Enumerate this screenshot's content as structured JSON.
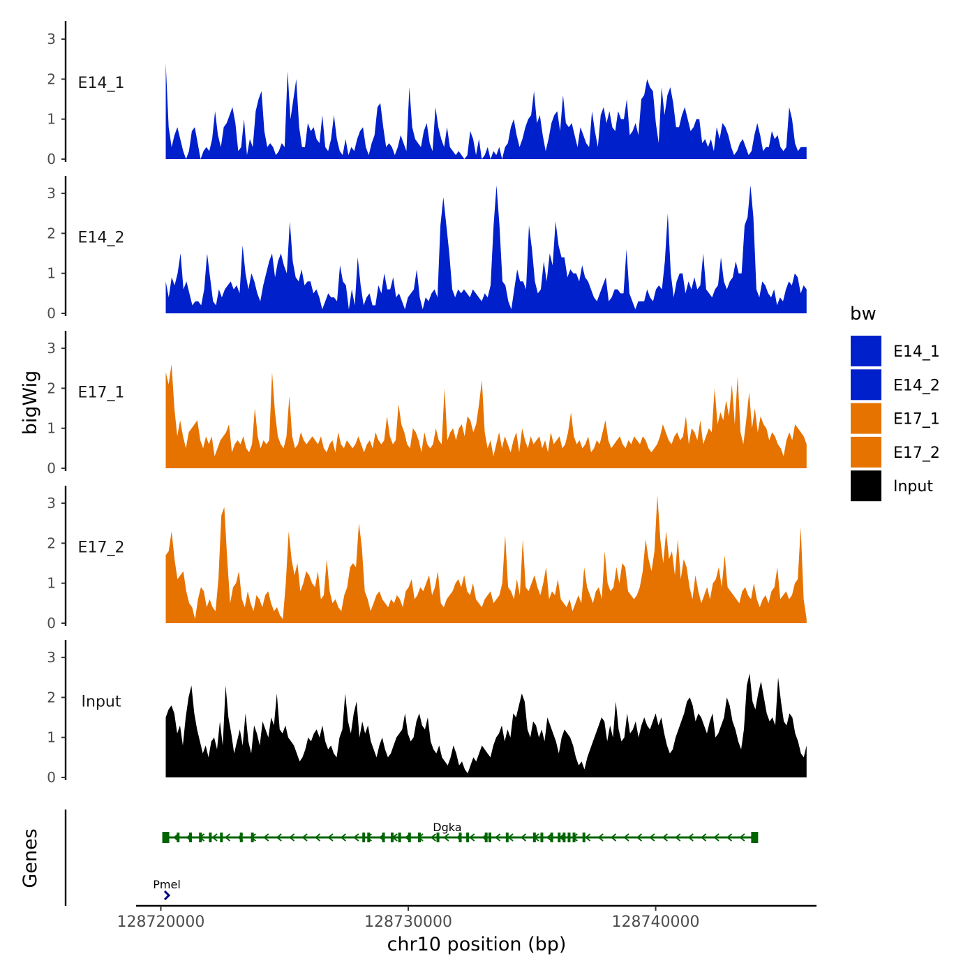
{
  "chart_data": {
    "type": "area",
    "xlabel": "chr10 position (bp)",
    "ylabel": "bigWig",
    "genes_label": "Genes",
    "xlim": [
      128719000,
      128746500
    ],
    "x_range": [
      128720200,
      128746100
    ],
    "x_ticks": [
      128720000,
      128730000,
      128740000
    ],
    "x_tick_labels": [
      "128720000",
      "128730000",
      "128740000"
    ],
    "ylim": [
      0,
      3.4
    ],
    "y_ticks": [
      0,
      1,
      2,
      3
    ],
    "y_tick_labels": [
      "0",
      "1",
      "2",
      "3"
    ],
    "legend": {
      "title": "bw",
      "entries": [
        {
          "label": "E14_1",
          "color": "#0020CC"
        },
        {
          "label": "E14_2",
          "color": "#0020CC"
        },
        {
          "label": "E17_1",
          "color": "#E67300"
        },
        {
          "label": "E17_2",
          "color": "#E67300"
        },
        {
          "label": "Input",
          "color": "#000000"
        }
      ]
    },
    "series": [
      {
        "name": "E14_1",
        "color": "#0020CC",
        "values": [
          2.4,
          0.8,
          0.3,
          0.6,
          0.8,
          0.5,
          0.2,
          0,
          0.2,
          0.7,
          0.8,
          0.4,
          0,
          0.2,
          0.3,
          0.2,
          0.5,
          1.2,
          0.6,
          0.3,
          0.8,
          0.9,
          1.1,
          1.3,
          0.9,
          0.2,
          0.3,
          1.0,
          0.1,
          0.5,
          0.3,
          1.2,
          1.5,
          1.7,
          0.7,
          0.3,
          0.4,
          0.3,
          0.1,
          0.2,
          0.4,
          0.3,
          2.2,
          1.0,
          1.5,
          2.0,
          0.8,
          0.3,
          0.3,
          0.9,
          0.7,
          0.8,
          0.5,
          0.4,
          1.1,
          0.3,
          0.2,
          0.5,
          1.1,
          0.5,
          0.2,
          0.1,
          0.5,
          0.1,
          0.3,
          0.2,
          0.5,
          0.7,
          0.8,
          0.3,
          0.1,
          0.4,
          0.6,
          1.3,
          1.4,
          0.8,
          0.3,
          0.4,
          0.3,
          0.1,
          0.3,
          0.6,
          0.4,
          0.2,
          1.8,
          0.8,
          0.5,
          0.4,
          0.3,
          0.7,
          0.9,
          0.4,
          0.2,
          1.3,
          0.8,
          0.5,
          0.3,
          0.8,
          0.3,
          0.2,
          0.1,
          0.2,
          0.1,
          0,
          0.1,
          0.7,
          0.5,
          0.1,
          0.5,
          0,
          0.1,
          0.3,
          0,
          0.2,
          0.1,
          0.3,
          0,
          0.3,
          0.4,
          0.8,
          1.0,
          0.6,
          0.3,
          0.5,
          0.8,
          1.0,
          1.1,
          1.7,
          0.9,
          1.1,
          0.6,
          0.2,
          0.5,
          0.9,
          1.1,
          1.2,
          0.7,
          1.6,
          0.9,
          0.8,
          0.9,
          0.6,
          0.3,
          0.8,
          0.6,
          0.4,
          0.3,
          1.2,
          0.7,
          0.3,
          1.1,
          1.3,
          0.9,
          1.2,
          0.8,
          0.7,
          1.2,
          1.0,
          1.0,
          1.5,
          0.6,
          0.7,
          0.9,
          0.6,
          1.5,
          1.6,
          2.0,
          1.8,
          1.7,
          0.9,
          0.4,
          1.8,
          1.1,
          1.6,
          1.8,
          1.4,
          0.8,
          0.8,
          1.1,
          1.3,
          1.0,
          0.7,
          0.8,
          1.0,
          1.0,
          0.4,
          0.5,
          0.3,
          0.5,
          0.2,
          0.8,
          0.5,
          0.9,
          0.8,
          0.6,
          0.3,
          0.1,
          0.2,
          0.4,
          0.5,
          0.3,
          0.1,
          0.2,
          0.6,
          0.9,
          0.6,
          0.2,
          0.3,
          0.3,
          0.7,
          0.5,
          0.6,
          0.3,
          0.2,
          0.3,
          1.3,
          1.0,
          0.4,
          0.2,
          0.3,
          0.3,
          0.3
        ]
      },
      {
        "name": "E14_2",
        "color": "#0020CC",
        "values": [
          0.8,
          0.4,
          0.9,
          0.7,
          1.0,
          1.5,
          0.6,
          0.8,
          0.5,
          0.2,
          0.3,
          0.3,
          0.2,
          0.6,
          1.5,
          0.9,
          0.3,
          0.2,
          0.6,
          0.4,
          0.6,
          0.7,
          0.8,
          0.6,
          0.7,
          0.5,
          1.7,
          1.0,
          0.6,
          1.0,
          0.8,
          0.5,
          0.3,
          0.7,
          1.0,
          1.3,
          1.5,
          0.9,
          1.3,
          1.5,
          1.2,
          1.0,
          2.3,
          1.3,
          0.9,
          0.8,
          1.1,
          0.7,
          0.8,
          0.8,
          0.5,
          0.6,
          0.4,
          0.1,
          0.3,
          0.5,
          0.4,
          0.4,
          0.3,
          1.2,
          0.8,
          0.7,
          0.1,
          0.6,
          0.2,
          1.4,
          0.7,
          0.2,
          0.4,
          0.5,
          0.2,
          0.2,
          0.7,
          0.5,
          1.0,
          0.6,
          0.6,
          0.9,
          0.4,
          0.5,
          0.3,
          0.1,
          0.4,
          0.5,
          0.6,
          1.1,
          0.4,
          0.1,
          0.4,
          0.3,
          0.5,
          0.6,
          0.4,
          2.2,
          2.9,
          2.2,
          1.5,
          0.6,
          0.4,
          0.6,
          0.5,
          0.6,
          0.5,
          0.4,
          0.6,
          0.5,
          0.4,
          0.3,
          0.5,
          0.4,
          0.7,
          2.2,
          3.2,
          2.2,
          0.8,
          0.7,
          0.3,
          0.1,
          0.6,
          1.1,
          0.8,
          0.8,
          0.6,
          2.2,
          1.6,
          0.8,
          0.5,
          0.6,
          1.3,
          0.8,
          1.5,
          1.2,
          2.3,
          1.7,
          1.4,
          1.4,
          0.9,
          1.1,
          1.0,
          1.0,
          0.8,
          1.2,
          0.9,
          0.8,
          0.6,
          0.4,
          0.3,
          0.5,
          0.7,
          0.9,
          0.3,
          0.4,
          0.6,
          0.6,
          0.5,
          0.5,
          1.6,
          0.5,
          0.3,
          0.1,
          0.3,
          0.3,
          0.3,
          0.6,
          0.4,
          0.3,
          0.6,
          0.7,
          0.6,
          1.3,
          2.5,
          1.0,
          0.4,
          0.8,
          1.0,
          1.0,
          0.5,
          0.8,
          0.6,
          0.9,
          0.6,
          0.7,
          1.5,
          0.6,
          0.5,
          0.4,
          0.6,
          0.7,
          1.4,
          0.8,
          0.6,
          0.8,
          0.9,
          1.3,
          1.0,
          1.0,
          2.2,
          2.4,
          3.2,
          2.4,
          0.6,
          0.4,
          0.8,
          0.7,
          0.5,
          0.4,
          0.6,
          0.2,
          0.4,
          0.3,
          0.6,
          0.8,
          0.7,
          1.0,
          0.9,
          0.5,
          0.7,
          0.6
        ]
      },
      {
        "name": "E17_1",
        "color": "#E67300",
        "values": [
          2.4,
          2.1,
          2.6,
          1.5,
          0.8,
          1.2,
          0.8,
          0.5,
          0.9,
          1.0,
          1.1,
          1.2,
          0.7,
          0.5,
          0.8,
          0.6,
          0.8,
          0.3,
          0.5,
          0.7,
          0.8,
          0.9,
          1.1,
          0.4,
          0.6,
          0.7,
          0.6,
          0.8,
          0.5,
          0.4,
          0.6,
          1.5,
          0.8,
          0.5,
          0.7,
          0.6,
          0.7,
          2.4,
          1.4,
          0.8,
          0.6,
          0.5,
          0.8,
          1.8,
          0.8,
          0.5,
          0.6,
          0.9,
          0.7,
          0.6,
          0.7,
          0.8,
          0.7,
          0.6,
          0.8,
          0.5,
          0.4,
          0.6,
          0.7,
          0.4,
          0.9,
          0.6,
          0.5,
          0.7,
          0.6,
          0.5,
          0.6,
          0.8,
          0.6,
          0.4,
          0.6,
          0.7,
          0.5,
          0.9,
          0.7,
          0.6,
          0.7,
          1.3,
          0.8,
          0.6,
          0.7,
          1.6,
          1.1,
          0.9,
          0.6,
          0.5,
          1.0,
          0.9,
          0.7,
          0.4,
          0.9,
          0.6,
          0.5,
          0.6,
          1.0,
          0.7,
          0.6,
          2.0,
          0.7,
          0.9,
          1.0,
          0.7,
          1.0,
          1.1,
          0.8,
          1.3,
          1.2,
          0.9,
          1.1,
          1.6,
          2.2,
          0.9,
          0.5,
          0.7,
          0.3,
          0.6,
          0.9,
          0.5,
          0.8,
          0.6,
          0.4,
          0.7,
          0.9,
          0.4,
          1.0,
          0.7,
          0.5,
          0.8,
          0.6,
          0.7,
          0.8,
          0.5,
          0.7,
          0.4,
          0.9,
          0.6,
          0.7,
          0.8,
          0.5,
          0.6,
          0.9,
          1.4,
          0.8,
          0.6,
          0.7,
          0.5,
          0.6,
          0.8,
          0.4,
          0.5,
          0.7,
          0.6,
          0.9,
          1.2,
          0.7,
          0.5,
          0.6,
          0.7,
          0.8,
          0.6,
          0.5,
          0.7,
          0.6,
          0.8,
          0.7,
          0.6,
          0.8,
          0.7,
          0.5,
          0.4,
          0.5,
          0.6,
          0.8,
          1.1,
          0.9,
          0.7,
          0.6,
          0.8,
          0.9,
          0.7,
          0.8,
          1.3,
          0.6,
          1.0,
          0.9,
          0.7,
          1.2,
          0.6,
          0.8,
          1.0,
          0.9,
          2.0,
          1.1,
          1.4,
          1.2,
          1.7,
          1.3,
          2.1,
          1.1,
          2.3,
          0.9,
          0.6,
          1.2,
          1.9,
          1.0,
          1.5,
          0.9,
          1.3,
          1.1,
          1.0,
          0.7,
          0.9,
          0.8,
          0.6,
          0.5,
          0.3,
          0.7,
          0.9,
          0.7,
          1.1,
          1.0,
          0.9,
          0.8,
          0.6
        ]
      },
      {
        "name": "E17_2",
        "color": "#E67300",
        "values": [
          1.7,
          1.8,
          2.3,
          1.6,
          1.1,
          1.2,
          1.3,
          0.8,
          0.5,
          0.4,
          0.1,
          0.6,
          0.9,
          0.8,
          0.4,
          0.6,
          0.4,
          0.3,
          1.1,
          2.7,
          2.9,
          1.6,
          0.5,
          0.9,
          1.0,
          1.3,
          0.6,
          0.4,
          0.8,
          0.5,
          0.3,
          0.7,
          0.6,
          0.4,
          0.7,
          0.8,
          0.5,
          0.3,
          0.4,
          0.2,
          0.1,
          1.0,
          2.3,
          1.6,
          1.2,
          1.5,
          0.8,
          1.0,
          1.3,
          1.2,
          1.0,
          0.9,
          1.3,
          0.6,
          0.7,
          1.6,
          0.8,
          0.5,
          0.6,
          0.4,
          0.3,
          0.7,
          0.9,
          1.4,
          1.5,
          1.4,
          2.5,
          1.9,
          0.8,
          0.6,
          0.3,
          0.5,
          0.7,
          0.8,
          0.6,
          0.5,
          0.4,
          0.6,
          0.5,
          0.7,
          0.6,
          0.4,
          0.8,
          0.9,
          1.1,
          0.6,
          0.7,
          0.9,
          0.8,
          1.0,
          1.2,
          0.7,
          0.9,
          1.3,
          0.5,
          0.4,
          0.6,
          0.7,
          0.8,
          1.0,
          1.1,
          0.9,
          1.2,
          0.8,
          0.7,
          1.0,
          0.6,
          0.5,
          0.4,
          0.6,
          0.7,
          0.8,
          0.5,
          0.6,
          0.7,
          1.0,
          2.2,
          0.9,
          0.8,
          0.6,
          1.1,
          0.7,
          2.1,
          0.9,
          0.8,
          1.0,
          1.2,
          0.9,
          0.7,
          1.0,
          1.4,
          0.6,
          0.8,
          0.7,
          1.1,
          0.6,
          0.5,
          0.4,
          0.6,
          0.3,
          0.5,
          0.7,
          0.5,
          1.4,
          0.9,
          0.7,
          0.5,
          0.8,
          0.9,
          0.6,
          1.8,
          1.0,
          0.8,
          0.9,
          1.4,
          1.0,
          1.5,
          1.4,
          0.8,
          0.7,
          0.6,
          0.7,
          0.9,
          1.3,
          2.1,
          1.6,
          1.3,
          1.8,
          3.2,
          2.1,
          1.5,
          2.3,
          1.6,
          1.8,
          1.2,
          2.1,
          1.1,
          1.6,
          1.4,
          0.9,
          0.6,
          1.2,
          0.8,
          0.5,
          0.7,
          0.9,
          0.6,
          1.0,
          1.1,
          1.4,
          0.9,
          1.7,
          0.9,
          0.8,
          0.7,
          0.6,
          0.5,
          0.8,
          0.9,
          0.7,
          0.6,
          1.0,
          0.6,
          0.4,
          0.6,
          0.7,
          0.5,
          0.8,
          0.9,
          1.4,
          0.6,
          0.7,
          0.8,
          0.6,
          0.7,
          1.0,
          1.1,
          2.4,
          0.6,
          0.1
        ]
      },
      {
        "name": "Input",
        "color": "#000000",
        "values": [
          1.5,
          1.7,
          1.8,
          1.6,
          1.1,
          1.3,
          0.8,
          1.5,
          2.0,
          2.3,
          1.6,
          1.2,
          0.9,
          0.6,
          0.8,
          0.5,
          0.9,
          1.0,
          0.7,
          1.4,
          0.8,
          2.3,
          1.5,
          1.1,
          0.6,
          0.9,
          1.2,
          0.8,
          1.6,
          0.9,
          0.6,
          1.3,
          1.1,
          0.8,
          1.4,
          1.2,
          1.0,
          1.5,
          1.3,
          2.1,
          1.2,
          1.1,
          1.3,
          1.0,
          0.9,
          0.8,
          0.6,
          0.4,
          0.5,
          0.7,
          1.0,
          0.9,
          1.1,
          1.2,
          1.0,
          1.3,
          0.9,
          0.7,
          0.8,
          0.6,
          0.5,
          1.0,
          1.2,
          2.1,
          1.4,
          1.1,
          1.6,
          1.9,
          1.0,
          1.4,
          1.1,
          1.3,
          0.9,
          0.7,
          0.5,
          0.8,
          1.0,
          0.7,
          0.5,
          0.6,
          0.8,
          1.0,
          1.1,
          1.2,
          1.6,
          1.1,
          0.9,
          1.0,
          1.4,
          1.6,
          1.3,
          1.2,
          1.5,
          0.9,
          0.7,
          0.6,
          0.8,
          0.5,
          0.4,
          0.3,
          0.5,
          0.8,
          0.6,
          0.3,
          0.4,
          0.2,
          0.1,
          0.3,
          0.5,
          0.4,
          0.6,
          0.8,
          0.7,
          0.6,
          0.5,
          0.8,
          1.0,
          1.1,
          1.3,
          0.9,
          1.2,
          1.0,
          1.6,
          1.5,
          1.8,
          2.1,
          1.9,
          1.2,
          1.0,
          1.4,
          1.3,
          1.0,
          1.2,
          0.9,
          1.5,
          1.3,
          1.1,
          0.9,
          0.6,
          1.0,
          1.2,
          1.1,
          1.0,
          0.8,
          0.5,
          0.3,
          0.4,
          0.2,
          0.5,
          0.7,
          0.9,
          1.1,
          1.3,
          1.5,
          1.4,
          0.9,
          1.3,
          1.0,
          1.9,
          1.2,
          0.9,
          1.0,
          1.6,
          1.1,
          1.2,
          1.4,
          1.0,
          1.3,
          1.5,
          1.3,
          1.2,
          1.4,
          1.6,
          1.3,
          1.5,
          1.1,
          0.8,
          0.6,
          0.7,
          1.0,
          1.2,
          1.4,
          1.6,
          1.9,
          2.0,
          1.8,
          1.4,
          1.6,
          1.5,
          1.3,
          1.1,
          1.4,
          1.6,
          1.0,
          1.1,
          1.3,
          1.5,
          2.0,
          1.8,
          1.4,
          1.2,
          0.9,
          0.7,
          1.2,
          2.3,
          2.6,
          1.9,
          1.7,
          2.1,
          2.4,
          2.0,
          1.6,
          1.4,
          1.5,
          1.3,
          2.5,
          1.9,
          1.4,
          1.3,
          1.6,
          1.5,
          1.1,
          0.9,
          0.6,
          0.5,
          0.8
        ]
      }
    ],
    "genes": [
      {
        "name": "Dgka",
        "start": 128720200,
        "end": 128744000,
        "strand": "-",
        "color": "#006400",
        "exons": [
          128720200,
          128720700,
          128721200,
          128721600,
          128722000,
          128722450,
          128723250,
          128723700,
          128728200,
          128728400,
          128729000,
          128729350,
          128729650,
          128730050,
          128730450,
          128731200,
          128732100,
          128732400,
          128733150,
          128733300,
          128734000,
          128735100,
          128735400,
          128735800,
          128736100,
          128736300,
          128736500,
          128736700,
          128737100,
          128744000
        ]
      },
      {
        "name": "Pmel",
        "start": 128720100,
        "end": 128720300,
        "strand": "+",
        "color": "#000080",
        "exons": []
      }
    ]
  }
}
